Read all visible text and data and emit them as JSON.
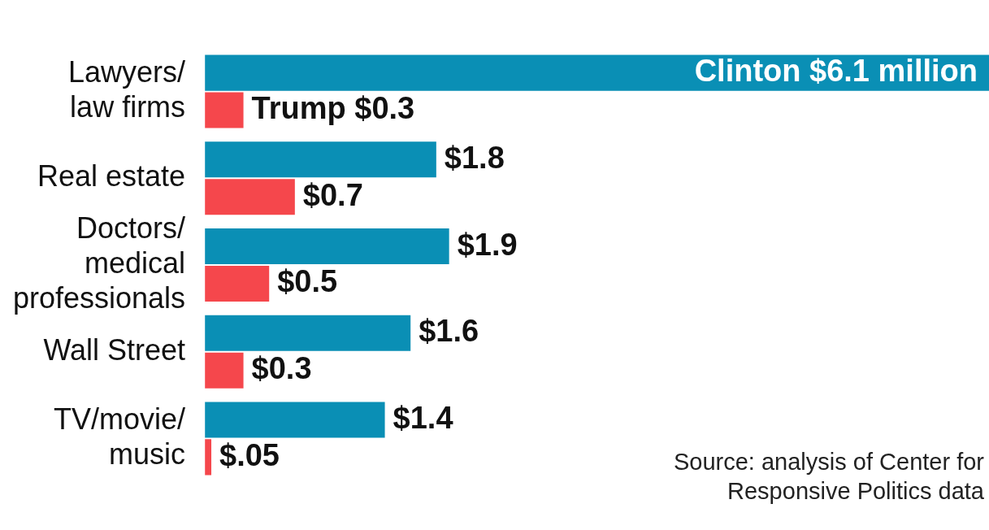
{
  "chart_data": {
    "type": "bar",
    "orientation": "horizontal",
    "categories": [
      "Lawyers/ law firms",
      "Real estate",
      "Doctors/ medical professionals",
      "Wall Street",
      "TV/movie/ music"
    ],
    "series": [
      {
        "name": "Clinton",
        "color": "#0a8fb5",
        "values": [
          6.1,
          1.8,
          1.9,
          1.6,
          1.4
        ],
        "value_labels": [
          "$6.1 million",
          "$1.8",
          "$1.9",
          "$1.6",
          "$1.4"
        ]
      },
      {
        "name": "Trump",
        "color": "#f5474c",
        "values": [
          0.3,
          0.7,
          0.5,
          0.3,
          0.05
        ],
        "value_labels": [
          "$0.3",
          "$0.7",
          "$0.5",
          "$0.3",
          "$.05"
        ]
      }
    ],
    "xlim": [
      0,
      6.1
    ],
    "tick_labels": "y",
    "legend": false,
    "annotations": [
      "Source: analysis of Center for Responsive Politics data"
    ]
  }
}
